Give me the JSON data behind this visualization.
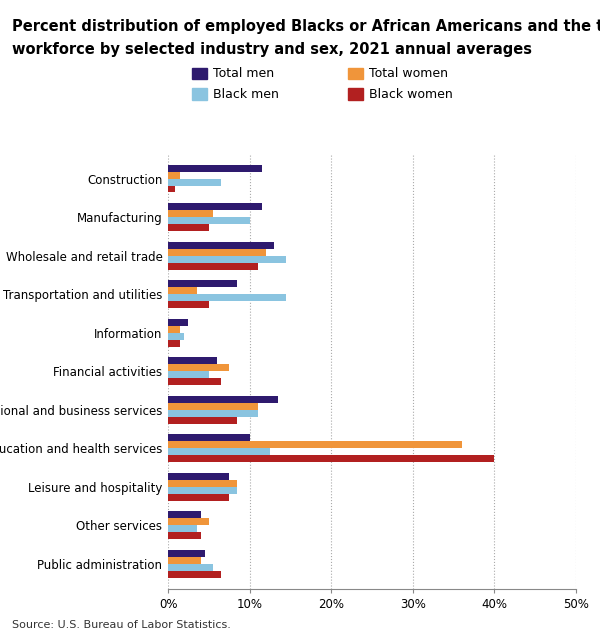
{
  "title_line1": "Percent distribution of employed Blacks or African Americans and the total",
  "title_line2": "workforce by selected industry and sex, 2021 annual averages",
  "source": "Source: U.S. Bureau of Labor Statistics.",
  "categories": [
    "Construction",
    "Manufacturing",
    "Wholesale and retail trade",
    "Transportation and utilities",
    "Information",
    "Financial activities",
    "Professional and business services",
    "Education and health services",
    "Leisure and hospitality",
    "Other services",
    "Public administration"
  ],
  "series": {
    "Total men": [
      11.5,
      11.5,
      13.0,
      8.5,
      2.5,
      6.0,
      13.5,
      10.0,
      7.5,
      4.0,
      4.5
    ],
    "Total women": [
      1.5,
      5.5,
      12.0,
      3.5,
      1.5,
      7.5,
      11.0,
      36.0,
      8.5,
      5.0,
      4.0
    ],
    "Black men": [
      6.5,
      10.0,
      14.5,
      14.5,
      2.0,
      5.0,
      11.0,
      12.5,
      8.5,
      3.5,
      5.5
    ],
    "Black women": [
      0.8,
      5.0,
      11.0,
      5.0,
      1.5,
      6.5,
      8.5,
      40.0,
      7.5,
      4.0,
      6.5
    ]
  },
  "colors": {
    "Total men": "#2e1a6e",
    "Total women": "#f0953a",
    "Black men": "#8ac4e0",
    "Black women": "#b22020"
  },
  "legend_order": [
    "Total men",
    "Total women",
    "Black men",
    "Black women"
  ],
  "xlim": [
    0,
    50
  ],
  "xticks": [
    0,
    10,
    20,
    30,
    40,
    50
  ],
  "xticklabels": [
    "0%",
    "10%",
    "20%",
    "30%",
    "40%",
    "50%"
  ],
  "background_color": "#ffffff",
  "bar_height": 0.18,
  "title_fontsize": 10.5,
  "tick_fontsize": 8.5,
  "legend_fontsize": 9,
  "source_fontsize": 8
}
